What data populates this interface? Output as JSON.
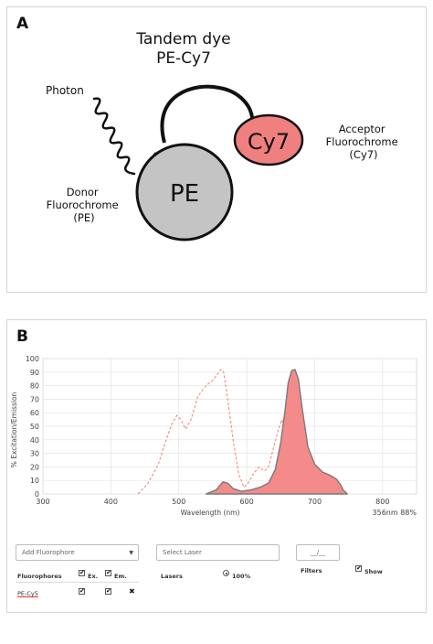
{
  "panel_a": {
    "letter": "A",
    "title_line1": "Tandem dye",
    "title_line2": "PE-Cy7",
    "photon_label": "Photon",
    "donor_circle_label": "PE",
    "acceptor_ellipse_label": "Cy7",
    "donor_caption": [
      "Donor",
      "Fluorochrome",
      "(PE)"
    ],
    "acceptor_caption": [
      "Acceptor",
      "Fluorochrome",
      "(Cy7)"
    ],
    "colors": {
      "donor_fill": "#c4c4c4",
      "acceptor_fill": "#f08080",
      "stroke": "#111111"
    }
  },
  "panel_b": {
    "letter": "B",
    "laser_readout": "356nm 88%",
    "controls": {
      "add_fluorophore_placeholder": "Add Fluorophore",
      "select_laser_placeholder": "Select Laser",
      "filter_placeholder": "__/__",
      "fluorophores_header": "Fluorophores",
      "ex_label": "Ex.",
      "em_label": "Em.",
      "lasers_header": "Lasers",
      "laser_power": "100%",
      "filters_header": "Filters",
      "show_label": "Show",
      "fluor_entry": "PE-Cy5",
      "remove_symbol": "✖",
      "checkmark": "✔",
      "caret": "▼"
    }
  },
  "chart_data": {
    "type": "area",
    "xlabel": "Wavelength (nm)",
    "ylabel": "% Excitation/Emission",
    "xlim": [
      300,
      850
    ],
    "ylim": [
      0,
      100
    ],
    "x_ticks": [
      300,
      400,
      500,
      600,
      700,
      800
    ],
    "y_ticks": [
      0,
      10,
      20,
      30,
      40,
      50,
      60,
      70,
      80,
      90,
      100
    ],
    "grid": true,
    "series": [
      {
        "role": "excitation",
        "style": "dashed",
        "color": "#f28b82",
        "points": [
          [
            440,
            0
          ],
          [
            455,
            8
          ],
          [
            470,
            22
          ],
          [
            480,
            38
          ],
          [
            490,
            52
          ],
          [
            497,
            58
          ],
          [
            503,
            55
          ],
          [
            510,
            48
          ],
          [
            518,
            55
          ],
          [
            528,
            72
          ],
          [
            540,
            80
          ],
          [
            550,
            84
          ],
          [
            556,
            88
          ],
          [
            562,
            92
          ],
          [
            566,
            90
          ],
          [
            572,
            70
          ],
          [
            580,
            40
          ],
          [
            588,
            15
          ],
          [
            596,
            5
          ],
          [
            602,
            8
          ],
          [
            610,
            15
          ],
          [
            618,
            20
          ],
          [
            626,
            17
          ],
          [
            632,
            20
          ],
          [
            640,
            35
          ],
          [
            648,
            50
          ],
          [
            652,
            55
          ],
          [
            660,
            30
          ],
          [
            668,
            15
          ],
          [
            675,
            5
          ],
          [
            680,
            0
          ]
        ]
      },
      {
        "role": "emission",
        "style": "filled",
        "color": "#f48a8a",
        "points": [
          [
            540,
            0
          ],
          [
            555,
            3
          ],
          [
            565,
            9
          ],
          [
            572,
            8
          ],
          [
            580,
            4
          ],
          [
            592,
            2
          ],
          [
            606,
            3
          ],
          [
            620,
            5
          ],
          [
            632,
            8
          ],
          [
            642,
            18
          ],
          [
            650,
            38
          ],
          [
            656,
            60
          ],
          [
            661,
            82
          ],
          [
            666,
            91
          ],
          [
            671,
            92
          ],
          [
            676,
            85
          ],
          [
            682,
            62
          ],
          [
            690,
            35
          ],
          [
            700,
            22
          ],
          [
            712,
            16
          ],
          [
            722,
            14
          ],
          [
            732,
            11
          ],
          [
            738,
            7
          ],
          [
            742,
            3
          ],
          [
            748,
            0
          ]
        ]
      }
    ]
  }
}
